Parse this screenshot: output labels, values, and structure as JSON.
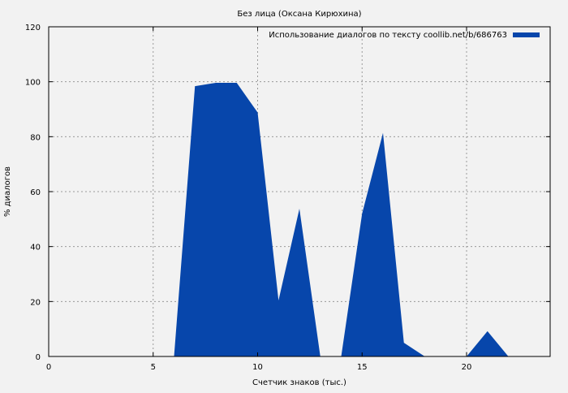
{
  "chart_data": {
    "type": "area",
    "title": "Без лица (Оксана Кирюхина)",
    "xlabel": "Счетчик знаков (тыс.)",
    "ylabel": "% диалогов",
    "xlim": [
      0,
      24
    ],
    "ylim": [
      0,
      120
    ],
    "xticks": [
      0,
      5,
      10,
      15,
      20
    ],
    "yticks": [
      0,
      20,
      40,
      60,
      80,
      100,
      120
    ],
    "grid": true,
    "legend_position": "top-right",
    "series": [
      {
        "name": "Использование диалогов по тексту coollib.net/b/686763",
        "color": "#0746ab",
        "x": [
          0,
          1,
          2,
          3,
          4,
          5,
          6,
          7,
          8,
          9,
          10,
          11,
          12,
          13,
          14,
          15,
          16,
          17,
          18,
          19,
          20,
          21,
          22,
          23
        ],
        "values": [
          0,
          0,
          0,
          0,
          0,
          0,
          0,
          98.4,
          99.6,
          99.6,
          88.8,
          20.4,
          53.8,
          0,
          0,
          52,
          81.4,
          5,
          0,
          0,
          0,
          9.2,
          0,
          0
        ]
      }
    ]
  }
}
